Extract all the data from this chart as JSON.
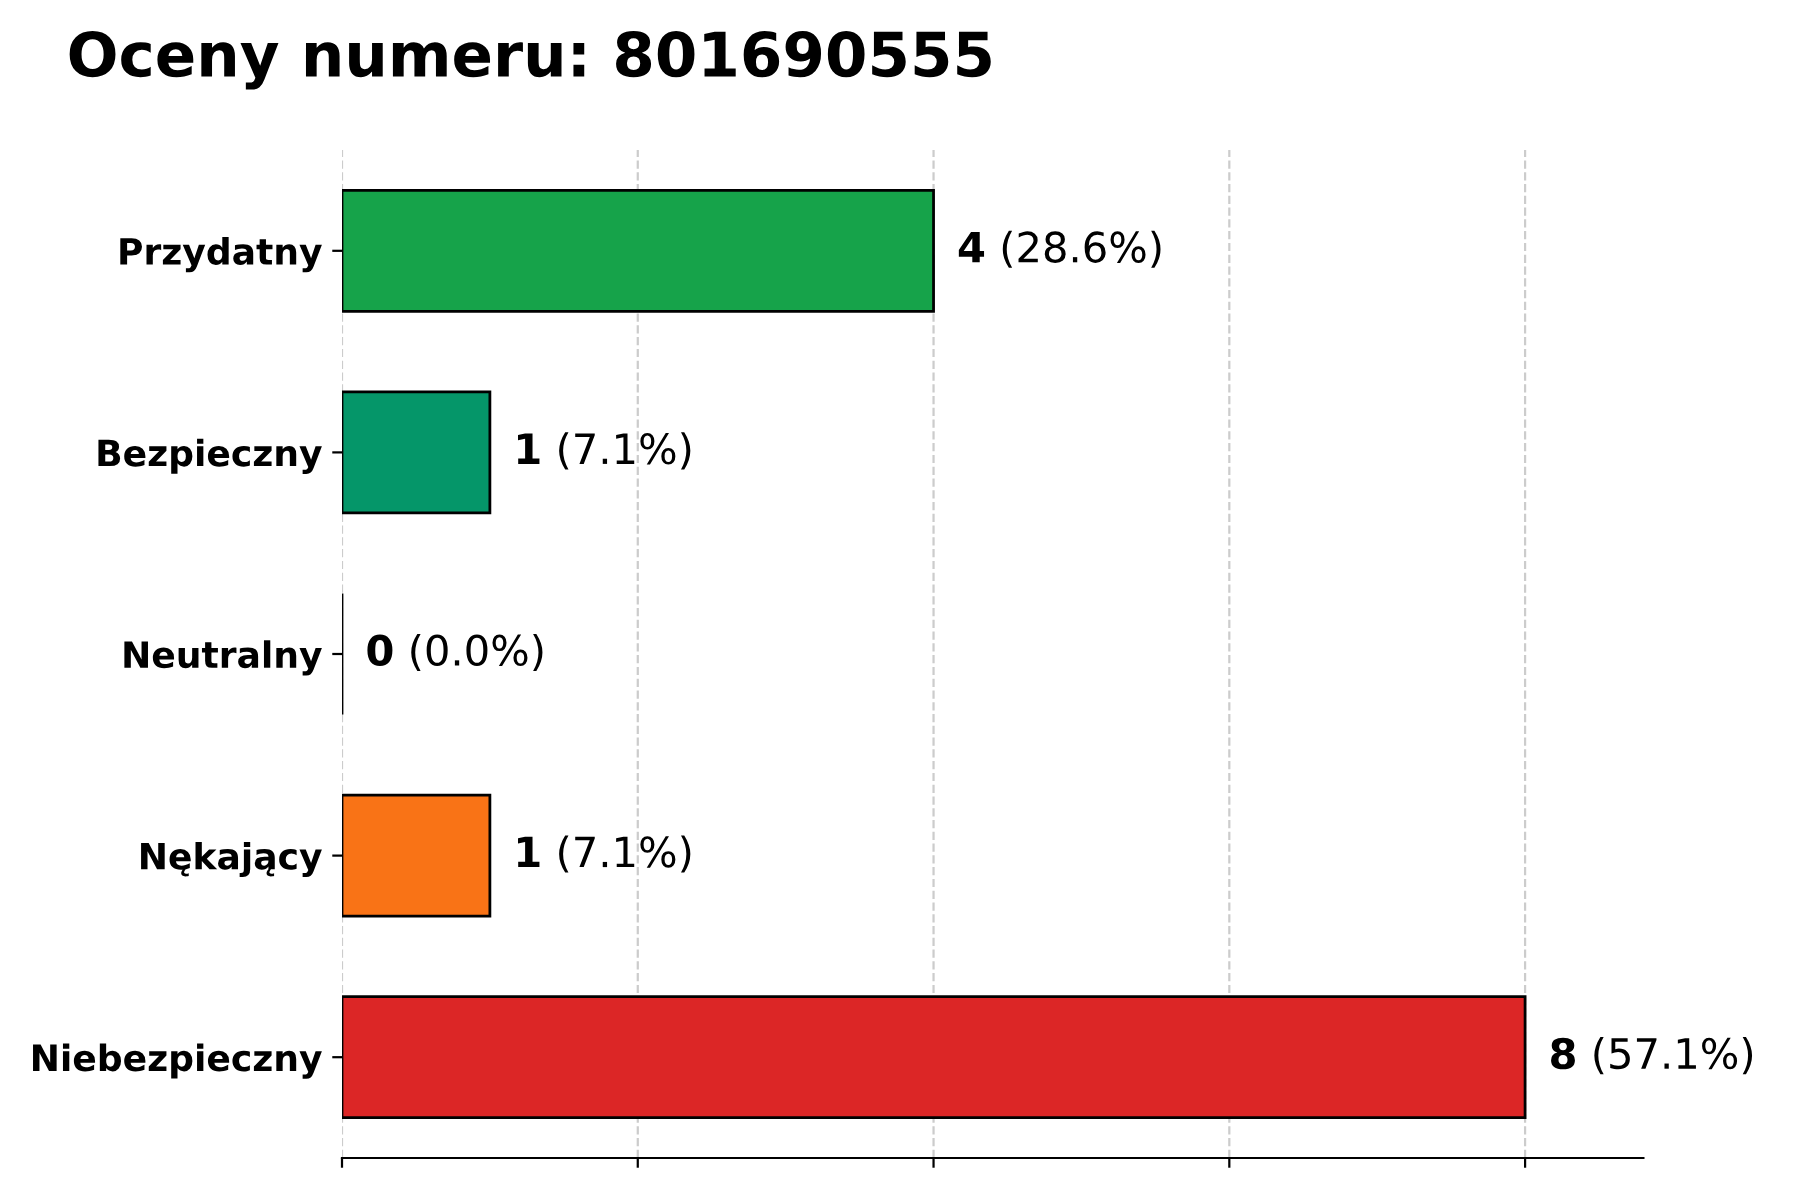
{
  "chart_data": {
    "type": "bar",
    "orientation": "horizontal",
    "title": "Oceny numeru: 801690555",
    "categories": [
      "Przydatny",
      "Bezpieczny",
      "Neutralny",
      "Nękający",
      "Niebezpieczny"
    ],
    "values": [
      4,
      1,
      0,
      1,
      8
    ],
    "colors": [
      "#16a34a",
      "#059669",
      "#000000",
      "#f97316",
      "#dc2626"
    ],
    "value_labels": [
      "4 (28.6%)",
      "1 (7.1%)",
      "0 (0.0%)",
      "1 (7.1%)",
      "8 (57.1%)"
    ],
    "xlim": [
      0,
      8.8
    ],
    "xticks": [
      {
        "value": 0,
        "label": null
      },
      {
        "value": 2,
        "label": null
      },
      {
        "value": 4,
        "label": null
      },
      {
        "value": 6,
        "label": null
      },
      {
        "value": 8,
        "label": null
      }
    ],
    "tick_labels": "y",
    "grid": "x",
    "legend": false
  }
}
